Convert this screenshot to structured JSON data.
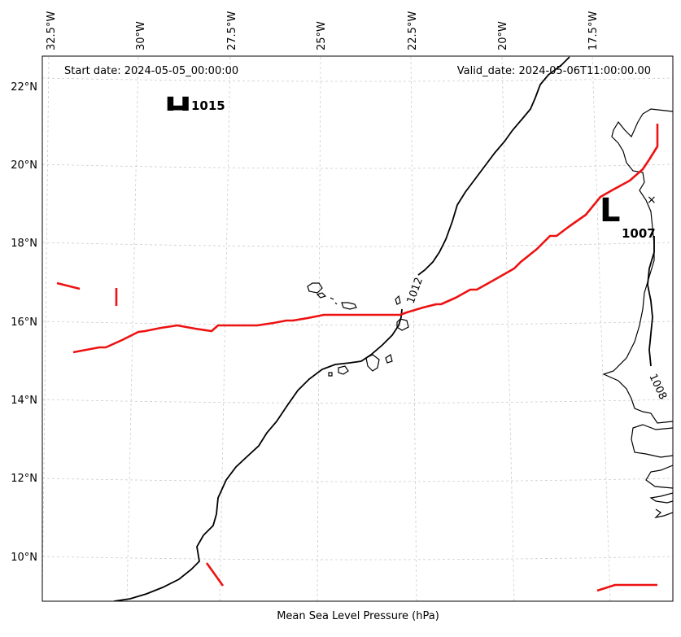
{
  "map": {
    "start_date": "Start date: 2024-05-05_00:00:00",
    "valid_date": "Valid_date: 2024-05-06T11:00:00.00",
    "footer": "Mean Sea Level Pressure (hPa)",
    "lon_ticks": [
      "32.5°W",
      "30°W",
      "27.5°W",
      "25°W",
      "22.5°W",
      "20°W",
      "17.5°W"
    ],
    "lat_ticks": [
      "22°N",
      "20°N",
      "18°N",
      "16°N",
      "14°N",
      "12°N",
      "10°N"
    ],
    "high": {
      "symbol": "H",
      "value": "1015"
    },
    "low": {
      "symbol": "L",
      "value": "1007",
      "marker": "×"
    },
    "contour_labels": [
      "1012",
      "1008"
    ],
    "colors": {
      "front": "#ee1111",
      "isobar": "#000000",
      "grid": "#cccccc"
    }
  }
}
